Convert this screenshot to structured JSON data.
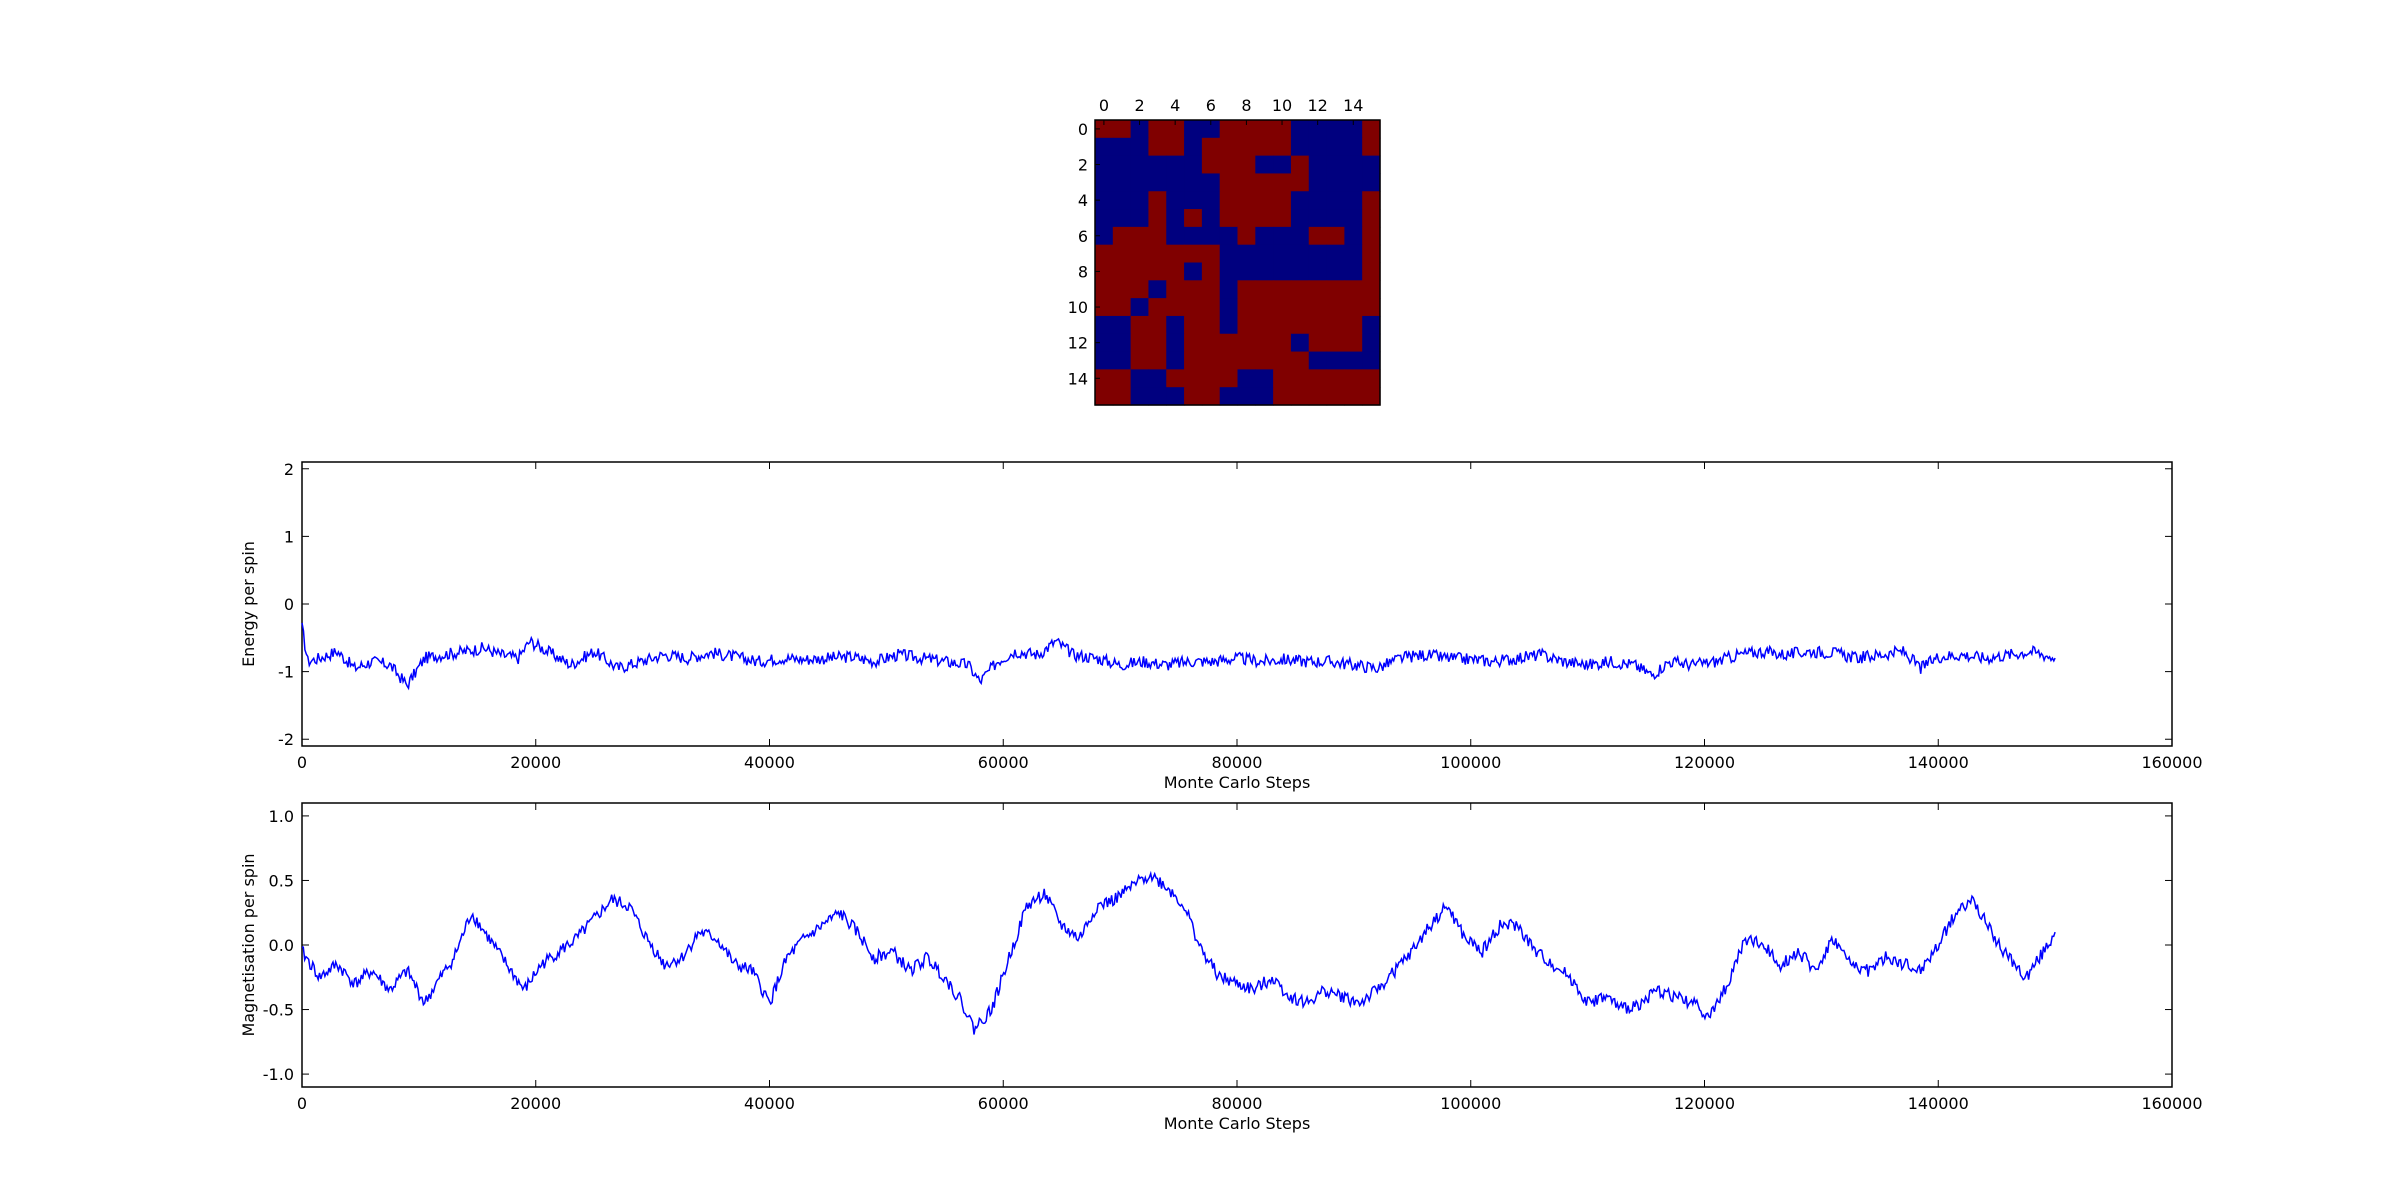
{
  "chart_data": [
    {
      "type": "heatmap",
      "description_ticks": "lattice spin configuration",
      "x_ticks": [
        "0",
        "2",
        "4",
        "6",
        "8",
        "10",
        "12",
        "14"
      ],
      "y_ticks": [
        "0",
        "2",
        "4",
        "6",
        "8",
        "10",
        "12",
        "14"
      ],
      "colors": {
        "up": "#800000",
        "down": "#00007f"
      },
      "grid": [
        "RRBRRBBRRRRBBBBR",
        "BBBRRBRRRRRBBBBR",
        "BBBBBBRRRBBRBBBB",
        "BBBBBBBRRRRRBBBB",
        "BBBRBBBRRRRBBBBR",
        "BBBRBRBRRRRBBBBR",
        "BRRRBBBBRBBBRRBR",
        "RRRRRRRBBBBBBBBR",
        "RRRRRBRBBBBBBBBR",
        "RRRBRRRBRRRRRRRR",
        "RRBRRRRBRRRRRRRR",
        "BBRRBRRBRRRRRRRB",
        "BBRRBRRRRRRBRRRB",
        "BBRRBRRRRRRRBBBB",
        "RRBBRRRRBBRRRRRR",
        "RRBBBRRBBBRRRRRR"
      ]
    },
    {
      "type": "line",
      "xlabel": "Monte Carlo Steps",
      "ylabel": "Energy per spin",
      "xlim": [
        0,
        160000
      ],
      "ylim": [
        -2.1,
        2.1
      ],
      "x_ticks": [
        0,
        20000,
        40000,
        60000,
        80000,
        100000,
        120000,
        140000,
        160000
      ],
      "y_ticks": [
        -2,
        -1,
        0,
        1,
        2
      ],
      "line_color": "#0000ff",
      "x": [
        0,
        500,
        1500,
        3000,
        4500,
        6000,
        7500,
        9000,
        10500,
        12000,
        14000,
        15500,
        17000,
        18500,
        19500,
        21000,
        23000,
        25000,
        27000,
        29000,
        31000,
        33000,
        35000,
        37000,
        39000,
        41000,
        43000,
        45000,
        47000,
        49000,
        51000,
        53000,
        55000,
        57000,
        58000,
        59500,
        61000,
        63000,
        64500,
        66000,
        68000,
        70000,
        72000,
        74000,
        76000,
        78000,
        80000,
        82000,
        84000,
        86000,
        88000,
        90000,
        92000,
        94000,
        96000,
        98000,
        100000,
        102000,
        104000,
        106000,
        108000,
        110000,
        112000,
        114000,
        115500,
        117000,
        119000,
        121000,
        123000,
        125000,
        127000,
        129000,
        131000,
        133000,
        135000,
        137000,
        138500,
        140000,
        142000,
        144000,
        146000,
        148000,
        150000
      ],
      "y": [
        -0.35,
        -0.85,
        -0.8,
        -0.7,
        -0.95,
        -0.85,
        -0.9,
        -1.2,
        -0.8,
        -0.75,
        -0.7,
        -0.65,
        -0.75,
        -0.8,
        -0.55,
        -0.7,
        -0.9,
        -0.7,
        -0.95,
        -0.85,
        -0.75,
        -0.8,
        -0.72,
        -0.78,
        -0.85,
        -0.8,
        -0.82,
        -0.8,
        -0.78,
        -0.85,
        -0.75,
        -0.8,
        -0.85,
        -0.9,
        -1.15,
        -0.85,
        -0.7,
        -0.75,
        -0.55,
        -0.75,
        -0.8,
        -0.9,
        -0.85,
        -0.9,
        -0.85,
        -0.85,
        -0.8,
        -0.85,
        -0.82,
        -0.85,
        -0.85,
        -0.9,
        -0.95,
        -0.8,
        -0.75,
        -0.8,
        -0.82,
        -0.85,
        -0.8,
        -0.75,
        -0.85,
        -0.9,
        -0.85,
        -0.9,
        -1.05,
        -0.85,
        -0.9,
        -0.85,
        -0.75,
        -0.7,
        -0.75,
        -0.7,
        -0.72,
        -0.8,
        -0.75,
        -0.7,
        -0.95,
        -0.78,
        -0.75,
        -0.8,
        -0.75,
        -0.7,
        -0.8
      ]
    },
    {
      "type": "line",
      "xlabel": "Monte Carlo Steps",
      "ylabel": "Magnetisation per spin",
      "xlim": [
        0,
        160000
      ],
      "ylim": [
        -1.1,
        1.1
      ],
      "x_ticks": [
        0,
        20000,
        40000,
        60000,
        80000,
        100000,
        120000,
        140000,
        160000
      ],
      "y_ticks": [
        -1.0,
        -0.5,
        0.0,
        0.5,
        1.0
      ],
      "line_color": "#0000ff",
      "x": [
        0,
        1500,
        3000,
        4500,
        6000,
        7500,
        9000,
        10500,
        11500,
        13000,
        14500,
        16000,
        17500,
        19000,
        20500,
        22000,
        23500,
        25000,
        26500,
        28000,
        29500,
        31000,
        32500,
        34000,
        35500,
        37000,
        38500,
        40000,
        41500,
        43000,
        44500,
        46000,
        47500,
        49000,
        50500,
        52000,
        53500,
        55000,
        56500,
        57500,
        59000,
        60500,
        62000,
        63500,
        65000,
        66500,
        68000,
        69500,
        71000,
        72500,
        74000,
        75500,
        77000,
        78500,
        80000,
        81500,
        83000,
        84500,
        86000,
        87500,
        89000,
        90500,
        92000,
        93500,
        95000,
        96500,
        98000,
        99500,
        101000,
        102500,
        104000,
        105500,
        107000,
        108500,
        110000,
        111500,
        113000,
        114500,
        116000,
        117500,
        119000,
        120500,
        122000,
        123500,
        125000,
        126500,
        128000,
        129500,
        131000,
        132500,
        134000,
        135500,
        137000,
        138500,
        140000,
        141500,
        143000,
        144500,
        146000,
        147500,
        149000,
        150000
      ],
      "y": [
        -0.05,
        -0.25,
        -0.15,
        -0.3,
        -0.2,
        -0.35,
        -0.2,
        -0.45,
        -0.3,
        -0.1,
        0.25,
        0.05,
        -0.15,
        -0.35,
        -0.15,
        -0.05,
        0.05,
        0.2,
        0.35,
        0.3,
        0.05,
        -0.15,
        -0.1,
        0.1,
        0.05,
        -0.15,
        -0.2,
        -0.45,
        -0.1,
        0.05,
        0.15,
        0.25,
        0.1,
        -0.1,
        -0.05,
        -0.2,
        -0.1,
        -0.25,
        -0.45,
        -0.65,
        -0.5,
        -0.1,
        0.3,
        0.4,
        0.15,
        0.05,
        0.3,
        0.35,
        0.45,
        0.55,
        0.45,
        0.3,
        -0.05,
        -0.25,
        -0.3,
        -0.35,
        -0.25,
        -0.4,
        -0.45,
        -0.35,
        -0.4,
        -0.45,
        -0.35,
        -0.2,
        -0.05,
        0.15,
        0.3,
        0.05,
        -0.05,
        0.15,
        0.15,
        -0.05,
        -0.15,
        -0.25,
        -0.45,
        -0.4,
        -0.5,
        -0.45,
        -0.35,
        -0.4,
        -0.45,
        -0.55,
        -0.3,
        0.05,
        0.0,
        -0.15,
        -0.05,
        -0.2,
        0.05,
        -0.15,
        -0.2,
        -0.1,
        -0.15,
        -0.2,
        0.0,
        0.25,
        0.35,
        0.1,
        -0.1,
        -0.25,
        -0.05,
        0.1
      ]
    }
  ]
}
